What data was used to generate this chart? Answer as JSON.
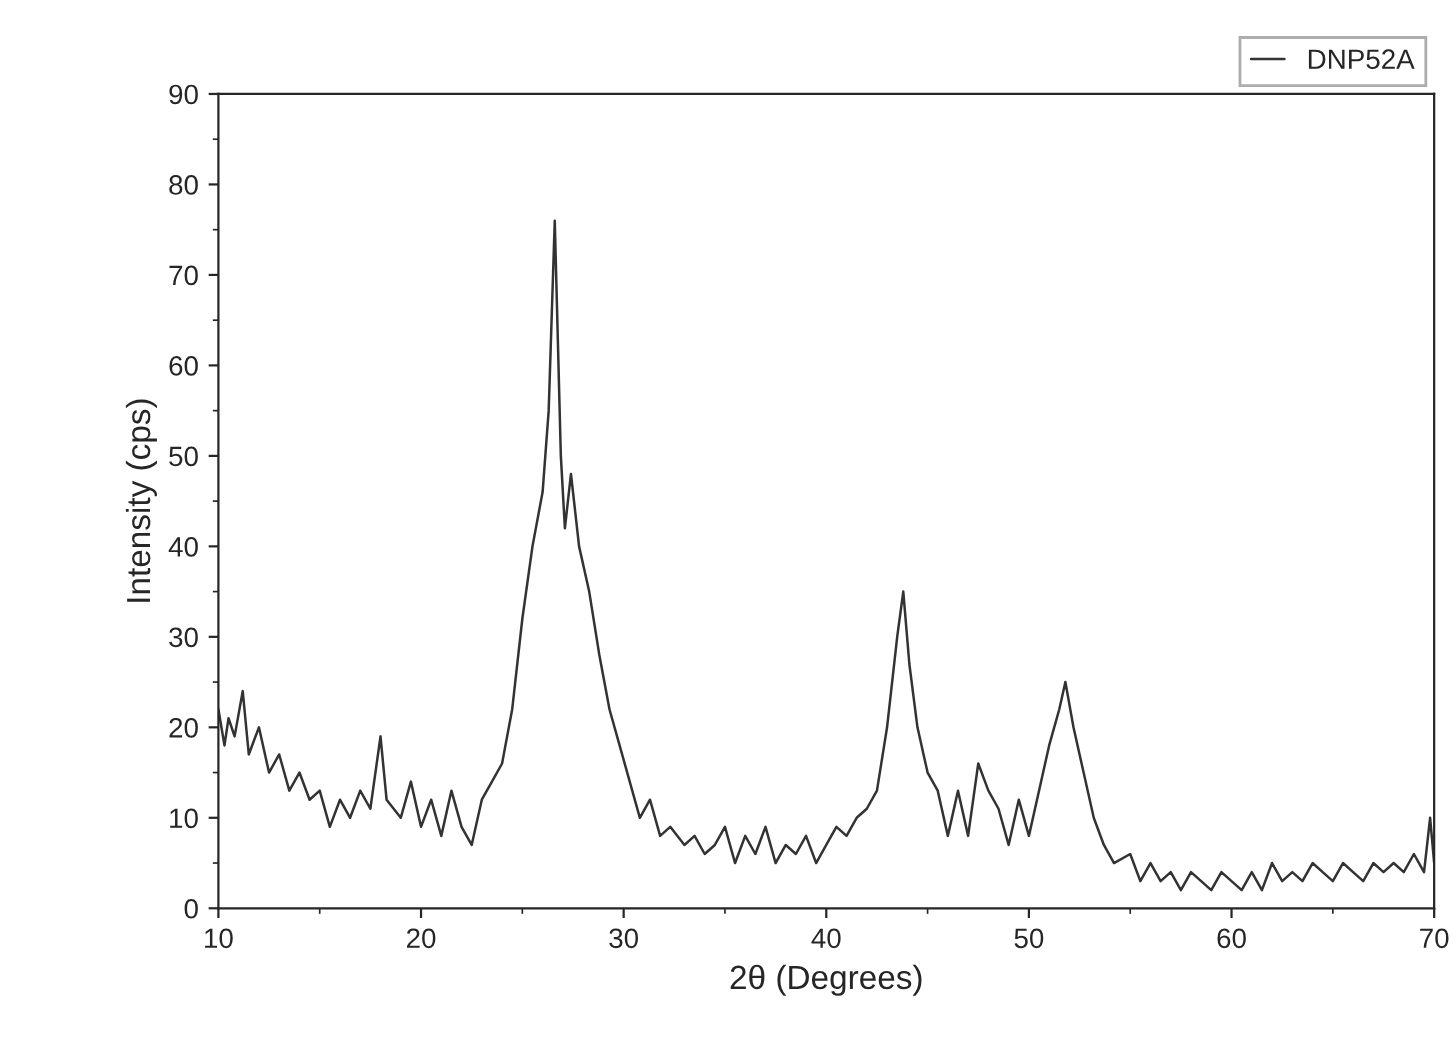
{
  "chart_data": {
    "type": "line",
    "xlabel": "2θ (Degrees)",
    "ylabel": "Intensity (cps)",
    "xlim": [
      10,
      70
    ],
    "xticks": [
      10,
      20,
      30,
      40,
      50,
      60,
      70
    ],
    "ylim": [
      0,
      90
    ],
    "yticks": [
      0,
      10,
      20,
      30,
      40,
      50,
      60,
      70,
      80,
      90
    ],
    "grid": false,
    "legend": "top right",
    "marker": "none",
    "line_style": "solid",
    "series": [
      {
        "name": "DNP52A",
        "color": "#333333",
        "x": [
          10,
          10.3,
          10.5,
          10.8,
          11.2,
          11.5,
          12,
          12.5,
          13,
          13.5,
          14,
          14.5,
          15,
          15.5,
          16,
          16.5,
          17,
          17.5,
          18,
          18.3,
          19,
          19.5,
          20,
          20.5,
          21,
          21.5,
          22,
          22.5,
          23,
          23.5,
          24,
          24.5,
          25,
          25.5,
          26,
          26.3,
          26.6,
          26.9,
          27.1,
          27.4,
          27.8,
          28.3,
          28.8,
          29.3,
          29.8,
          30.3,
          30.8,
          31.3,
          31.8,
          32.3,
          33,
          33.5,
          34,
          34.5,
          35,
          35.5,
          36,
          36.5,
          37,
          37.5,
          38,
          38.5,
          39,
          39.5,
          40,
          40.5,
          41,
          41.5,
          42,
          42.5,
          43,
          43.5,
          43.8,
          44.1,
          44.5,
          45,
          45.5,
          46,
          46.5,
          47,
          47.5,
          48,
          48.5,
          49,
          49.5,
          50,
          50.5,
          51,
          51.5,
          51.8,
          52.2,
          52.7,
          53.2,
          53.7,
          54.2,
          55,
          55.5,
          56,
          56.5,
          57,
          57.5,
          58,
          58.5,
          59,
          59.5,
          60,
          60.5,
          61,
          61.5,
          62,
          62.5,
          63,
          63.5,
          64,
          64.5,
          65,
          65.5,
          66,
          66.5,
          67,
          67.5,
          68,
          68.5,
          69,
          69.5,
          69.8,
          70
        ],
        "values": [
          22,
          18,
          21,
          19,
          24,
          17,
          20,
          15,
          17,
          13,
          15,
          12,
          13,
          9,
          12,
          10,
          13,
          11,
          19,
          12,
          10,
          14,
          9,
          12,
          8,
          13,
          9,
          7,
          12,
          14,
          16,
          22,
          32,
          40,
          46,
          55,
          76,
          50,
          42,
          48,
          40,
          35,
          28,
          22,
          18,
          14,
          10,
          12,
          8,
          9,
          7,
          8,
          6,
          7,
          9,
          5,
          8,
          6,
          9,
          5,
          7,
          6,
          8,
          5,
          7,
          9,
          8,
          10,
          11,
          13,
          20,
          30,
          35,
          27,
          20,
          15,
          13,
          8,
          13,
          8,
          16,
          13,
          11,
          7,
          12,
          8,
          13,
          18,
          22,
          25,
          20,
          15,
          10,
          7,
          5,
          6,
          3,
          5,
          3,
          4,
          2,
          4,
          3,
          2,
          4,
          3,
          2,
          4,
          2,
          5,
          3,
          4,
          3,
          5,
          4,
          3,
          5,
          4,
          3,
          5,
          4,
          5,
          4,
          6,
          4,
          10,
          5
        ]
      }
    ]
  }
}
